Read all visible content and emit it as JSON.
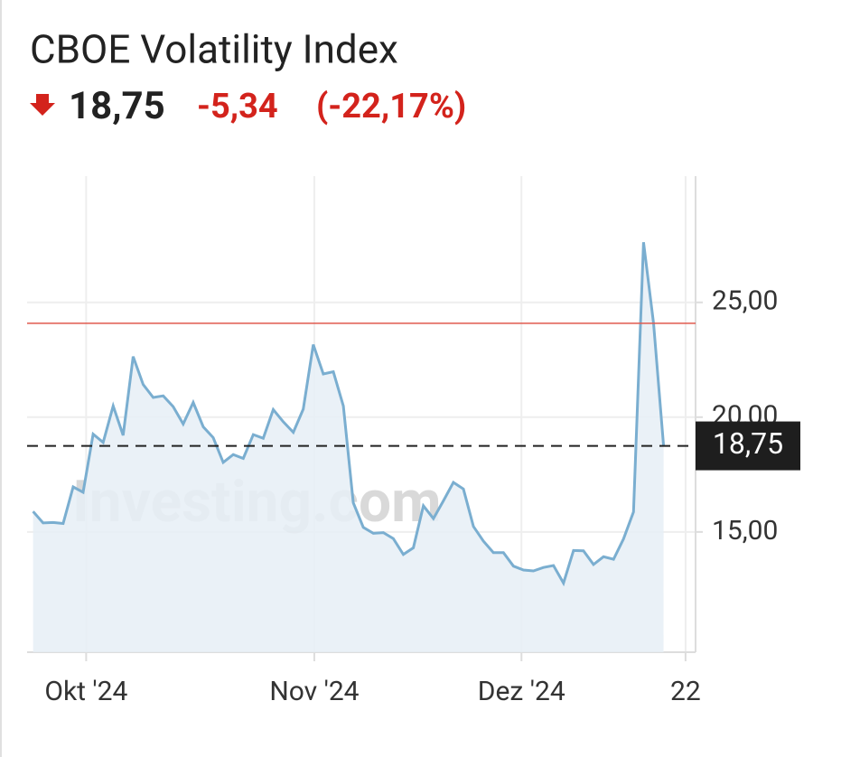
{
  "header": {
    "title": "CBOE Volatility Index",
    "change": "-5,34",
    "change_pct": "(-22,17%)"
  },
  "chart_data": {
    "type": "area",
    "color": "#7aaed0",
    "fill": "#e6eff6",
    "values": [
      15.89,
      15.39,
      15.41,
      15.37,
      16.96,
      16.73,
      19.26,
      18.9,
      20.49,
      19.21,
      22.64,
      21.42,
      20.86,
      20.93,
      20.46,
      19.7,
      20.64,
      19.58,
      19.11,
      18.03,
      18.37,
      18.2,
      19.24,
      19.08,
      20.33,
      19.8,
      19.34,
      20.35,
      23.16,
      21.88,
      21.98,
      20.49,
      16.27,
      15.2,
      14.94,
      14.97,
      14.71,
      14.02,
      14.31,
      16.14,
      15.58,
      16.35,
      17.16,
      16.87,
      15.24,
      14.6,
      14.1,
      14.1,
      13.51,
      13.34,
      13.3,
      13.45,
      13.54,
      12.77,
      14.19,
      14.18,
      13.58,
      13.92,
      13.81,
      14.69,
      15.87,
      27.62,
      24.09,
      18.75
    ],
    "xlim": [
      -0.6,
      66.2
    ],
    "xticks": [
      {
        "value": 5.3,
        "label": "Okt '24"
      },
      {
        "value": 28.1,
        "label": "Nov '24"
      },
      {
        "value": 48.8,
        "label": "Dez '24"
      },
      {
        "value": 65.2,
        "label": "22"
      }
    ],
    "ylim": [
      9.76,
      30.5
    ],
    "yticks": [
      {
        "value": 15,
        "label": "15,00"
      },
      {
        "value": 20,
        "label": "20,00"
      },
      {
        "value": 25,
        "label": "25,00"
      }
    ],
    "reference_line": {
      "value": 24.09,
      "color": "#e05a4e"
    },
    "current": {
      "value": 18.75,
      "label": "18,75"
    },
    "watermark": "Investing.com",
    "grid": true
  }
}
